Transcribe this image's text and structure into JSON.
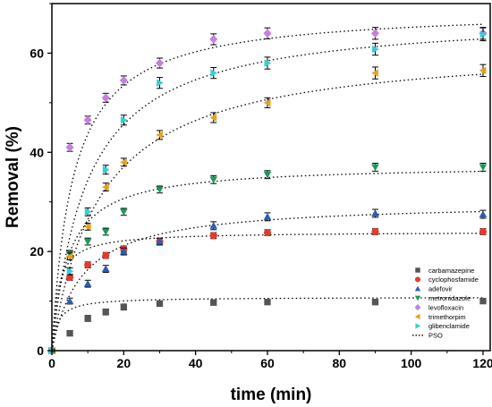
{
  "chart_data": {
    "type": "scatter",
    "xlabel": "time (min)",
    "ylabel": "Removal (%)",
    "xlim": [
      0,
      122
    ],
    "ylim": [
      0,
      70
    ],
    "xticks": [
      0,
      20,
      40,
      60,
      80,
      100,
      120
    ],
    "yticks": [
      0,
      20,
      40,
      60
    ],
    "legend_position": "right",
    "x": [
      0,
      5,
      10,
      15,
      20,
      30,
      45,
      60,
      90,
      120
    ],
    "series": [
      {
        "name": "carbamazepine",
        "marker": "square",
        "color": "#555555",
        "values": [
          0,
          3.5,
          6.5,
          7.8,
          8.8,
          9.5,
          9.7,
          9.8,
          9.8,
          10.0
        ],
        "error": [
          0.3,
          0.5,
          0.6,
          0.6,
          0.6,
          0.5,
          0.5,
          0.5,
          0.5,
          0.5
        ],
        "fit": {
          "qe": 10.8,
          "k2": 0.06
        }
      },
      {
        "name": "cyclophosfamide",
        "marker": "circle",
        "color": "#e03c31",
        "values": [
          0,
          14.8,
          17.3,
          19.2,
          20.5,
          22.0,
          23.2,
          23.8,
          24.0,
          24.0
        ],
        "error": [
          0.3,
          0.6,
          0.6,
          0.6,
          0.6,
          0.6,
          0.6,
          0.6,
          0.6,
          0.6
        ],
        "fit": {
          "qe": 24.0,
          "k2": 0.025
        }
      },
      {
        "name": "adefovir",
        "marker": "triangle-up",
        "color": "#2b5db5",
        "values": [
          0,
          10.0,
          13.5,
          16.5,
          20.0,
          22.0,
          25.2,
          27.0,
          27.7,
          27.5
        ],
        "error": [
          0.3,
          0.6,
          0.7,
          0.7,
          0.7,
          0.7,
          0.8,
          0.8,
          0.8,
          0.8
        ],
        "fit": {
          "qe": 30.0,
          "k2": 0.004
        }
      },
      {
        "name": "metronidazole",
        "marker": "triangle-down",
        "color": "#1a9a5c",
        "values": [
          0,
          19.5,
          22.0,
          24.0,
          28.0,
          32.5,
          34.5,
          35.5,
          37.0,
          37.0
        ],
        "error": [
          0.3,
          0.7,
          0.7,
          0.7,
          0.7,
          0.7,
          0.8,
          0.8,
          0.8,
          0.8
        ],
        "fit": {
          "qe": 37.5,
          "k2": 0.006
        }
      },
      {
        "name": "levofloxacin",
        "marker": "diamond",
        "color": "#c57fe0",
        "values": [
          0,
          41.0,
          46.5,
          51.0,
          54.5,
          58.0,
          62.8,
          64.0,
          64.0,
          64.0
        ],
        "error": [
          0.4,
          0.8,
          0.8,
          0.9,
          0.9,
          1.0,
          1.1,
          1.1,
          1.2,
          1.2
        ],
        "fit": {
          "qe": 69.0,
          "k2": 0.0025
        }
      },
      {
        "name": "trimethorpim",
        "marker": "triangle-left",
        "color": "#e8a020",
        "values": [
          0,
          19.0,
          25.0,
          33.0,
          38.0,
          43.5,
          47.0,
          50.0,
          56.0,
          56.5
        ],
        "error": [
          0.3,
          0.7,
          0.7,
          0.8,
          0.8,
          0.9,
          1.0,
          1.0,
          1.2,
          1.2
        ],
        "fit": {
          "qe": 62.0,
          "k2": 0.0012
        }
      },
      {
        "name": "glibenclamide",
        "marker": "triangle-right",
        "color": "#33cfd6",
        "values": [
          0,
          16.0,
          28.0,
          36.5,
          46.5,
          54.0,
          56.0,
          58.0,
          60.8,
          63.8
        ],
        "error": [
          0.3,
          0.7,
          0.8,
          0.9,
          1.0,
          1.1,
          1.1,
          1.2,
          1.2,
          1.3
        ],
        "fit": {
          "qe": 68.0,
          "k2": 0.0015
        }
      }
    ],
    "fit_legend": "PSO"
  }
}
